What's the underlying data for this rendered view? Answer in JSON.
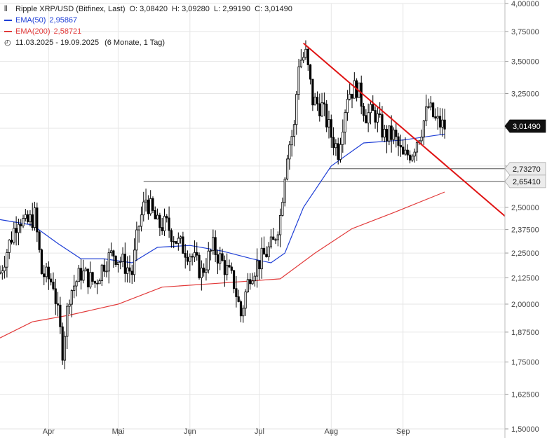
{
  "legend": {
    "title": "Ripple XRP/USD (Bitfinex, Last)",
    "ohlc": "O: 3,08420  H: 3,09280  L: 2,99190  C: 3,01490",
    "ema50_label": "EMA(50)",
    "ema50_value": "2,95867",
    "ema200_label": "EMA(200)",
    "ema200_value": "2,58721",
    "range": "11.03.2025 - 19.09.2025",
    "range_detail": "(6 Monate, 1 Tag)"
  },
  "colors": {
    "ema50": "#1f3fd6",
    "ema200": "#e23a3a",
    "trend": "#e01414",
    "candle": "#000000"
  },
  "chart_data": {
    "type": "line",
    "y_ticks": [
      "4,00000",
      "3,75000",
      "3,50000",
      "3,25000",
      "3,00000",
      "2,75000",
      "2,50000",
      "2,37500",
      "2,25000",
      "2,12500",
      "2,00000",
      "1,87500",
      "1,75000",
      "1,62500",
      "1,50000"
    ],
    "y_tick_values": [
      4.0,
      3.75,
      3.5,
      3.25,
      3.0,
      2.75,
      2.5,
      2.375,
      2.25,
      2.125,
      2.0,
      1.875,
      1.75,
      1.625,
      1.5
    ],
    "x_ticks": [
      {
        "label": "Apr",
        "date": "2025-04-01"
      },
      {
        "label": "Mai",
        "date": "2025-05-01"
      },
      {
        "label": "Jun",
        "date": "2025-06-01"
      },
      {
        "label": "Jul",
        "date": "2025-07-01"
      },
      {
        "label": "Aug",
        "date": "2025-08-01"
      },
      {
        "label": "Sep",
        "date": "2025-09-01"
      }
    ],
    "x_range": [
      "2025-03-11",
      "2025-10-15"
    ],
    "y_scale": "log",
    "y_range": [
      1.5,
      4.0
    ],
    "price_tags": [
      {
        "label": "3,01490",
        "value": 3.0149,
        "style": "dark"
      },
      {
        "label": "2,73270",
        "value": 2.7327,
        "style": "light"
      },
      {
        "label": "2,65410",
        "value": 2.6541,
        "style": "light"
      }
    ],
    "horizontal_levels": [
      {
        "value": 2.7327,
        "from": "2025-07-31",
        "to": "2025-10-15"
      },
      {
        "value": 2.6541,
        "from": "2025-05-12",
        "to": "2025-10-15"
      }
    ],
    "trendline": {
      "from": {
        "date": "2025-07-20",
        "value": 3.65
      },
      "to": {
        "date": "2025-10-15",
        "value": 2.45
      }
    },
    "ohlc_keypoints": [
      {
        "date": "2025-03-11",
        "close": 2.15
      },
      {
        "date": "2025-03-19",
        "close": 2.45
      },
      {
        "date": "2025-03-22",
        "close": 2.4
      },
      {
        "date": "2025-03-26",
        "close": 2.45
      },
      {
        "date": "2025-03-29",
        "close": 2.15
      },
      {
        "date": "2025-04-03",
        "close": 2.1
      },
      {
        "date": "2025-04-07",
        "close": 1.8
      },
      {
        "date": "2025-04-10",
        "close": 2.05
      },
      {
        "date": "2025-04-15",
        "close": 2.15
      },
      {
        "date": "2025-04-21",
        "close": 2.1
      },
      {
        "date": "2025-04-25",
        "close": 2.2
      },
      {
        "date": "2025-04-29",
        "close": 2.25
      },
      {
        "date": "2025-05-03",
        "close": 2.2
      },
      {
        "date": "2025-05-07",
        "close": 2.15
      },
      {
        "date": "2025-05-10",
        "close": 2.4
      },
      {
        "date": "2025-05-13",
        "close": 2.55
      },
      {
        "date": "2025-05-18",
        "close": 2.4
      },
      {
        "date": "2025-05-22",
        "close": 2.4
      },
      {
        "date": "2025-05-27",
        "close": 2.3
      },
      {
        "date": "2025-06-01",
        "close": 2.25
      },
      {
        "date": "2025-06-06",
        "close": 2.15
      },
      {
        "date": "2025-06-11",
        "close": 2.28
      },
      {
        "date": "2025-06-15",
        "close": 2.2
      },
      {
        "date": "2025-06-20",
        "close": 2.1
      },
      {
        "date": "2025-06-23",
        "close": 1.95
      },
      {
        "date": "2025-06-27",
        "close": 2.15
      },
      {
        "date": "2025-07-02",
        "close": 2.22
      },
      {
        "date": "2025-07-07",
        "close": 2.3
      },
      {
        "date": "2025-07-10",
        "close": 2.45
      },
      {
        "date": "2025-07-13",
        "close": 2.85
      },
      {
        "date": "2025-07-16",
        "close": 3.0
      },
      {
        "date": "2025-07-18",
        "close": 3.5
      },
      {
        "date": "2025-07-21",
        "close": 3.55
      },
      {
        "date": "2025-07-24",
        "close": 3.2
      },
      {
        "date": "2025-07-28",
        "close": 3.15
      },
      {
        "date": "2025-08-01",
        "close": 2.95
      },
      {
        "date": "2025-08-04",
        "close": 2.85
      },
      {
        "date": "2025-08-08",
        "close": 3.25
      },
      {
        "date": "2025-08-12",
        "close": 3.3
      },
      {
        "date": "2025-08-16",
        "close": 3.1
      },
      {
        "date": "2025-08-20",
        "close": 3.1
      },
      {
        "date": "2025-08-24",
        "close": 2.95
      },
      {
        "date": "2025-08-28",
        "close": 2.95
      },
      {
        "date": "2025-09-01",
        "close": 2.8
      },
      {
        "date": "2025-09-05",
        "close": 2.85
      },
      {
        "date": "2025-09-09",
        "close": 3.0
      },
      {
        "date": "2025-09-12",
        "close": 3.15
      },
      {
        "date": "2025-09-15",
        "close": 3.05
      },
      {
        "date": "2025-09-19",
        "close": 3.01
      }
    ],
    "series": [
      {
        "name": "EMA(50)",
        "color": "#1f3fd6",
        "points": [
          {
            "date": "2025-03-11",
            "value": 2.43
          },
          {
            "date": "2025-03-25",
            "value": 2.4
          },
          {
            "date": "2025-04-05",
            "value": 2.3
          },
          {
            "date": "2025-04-15",
            "value": 2.22
          },
          {
            "date": "2025-04-25",
            "value": 2.22
          },
          {
            "date": "2025-05-07",
            "value": 2.2
          },
          {
            "date": "2025-05-18",
            "value": 2.28
          },
          {
            "date": "2025-06-01",
            "value": 2.29
          },
          {
            "date": "2025-06-15",
            "value": 2.26
          },
          {
            "date": "2025-06-28",
            "value": 2.22
          },
          {
            "date": "2025-07-06",
            "value": 2.2
          },
          {
            "date": "2025-07-12",
            "value": 2.25
          },
          {
            "date": "2025-07-20",
            "value": 2.5
          },
          {
            "date": "2025-08-01",
            "value": 2.75
          },
          {
            "date": "2025-08-15",
            "value": 2.9
          },
          {
            "date": "2025-09-01",
            "value": 2.92
          },
          {
            "date": "2025-09-19",
            "value": 2.96
          }
        ]
      },
      {
        "name": "EMA(200)",
        "color": "#e23a3a",
        "points": [
          {
            "date": "2025-03-11",
            "value": 1.85
          },
          {
            "date": "2025-03-25",
            "value": 1.92
          },
          {
            "date": "2025-04-10",
            "value": 1.95
          },
          {
            "date": "2025-05-01",
            "value": 2.0
          },
          {
            "date": "2025-05-20",
            "value": 2.08
          },
          {
            "date": "2025-06-15",
            "value": 2.1
          },
          {
            "date": "2025-07-10",
            "value": 2.12
          },
          {
            "date": "2025-07-25",
            "value": 2.25
          },
          {
            "date": "2025-08-10",
            "value": 2.38
          },
          {
            "date": "2025-08-28",
            "value": 2.47
          },
          {
            "date": "2025-09-19",
            "value": 2.59
          }
        ]
      }
    ]
  }
}
